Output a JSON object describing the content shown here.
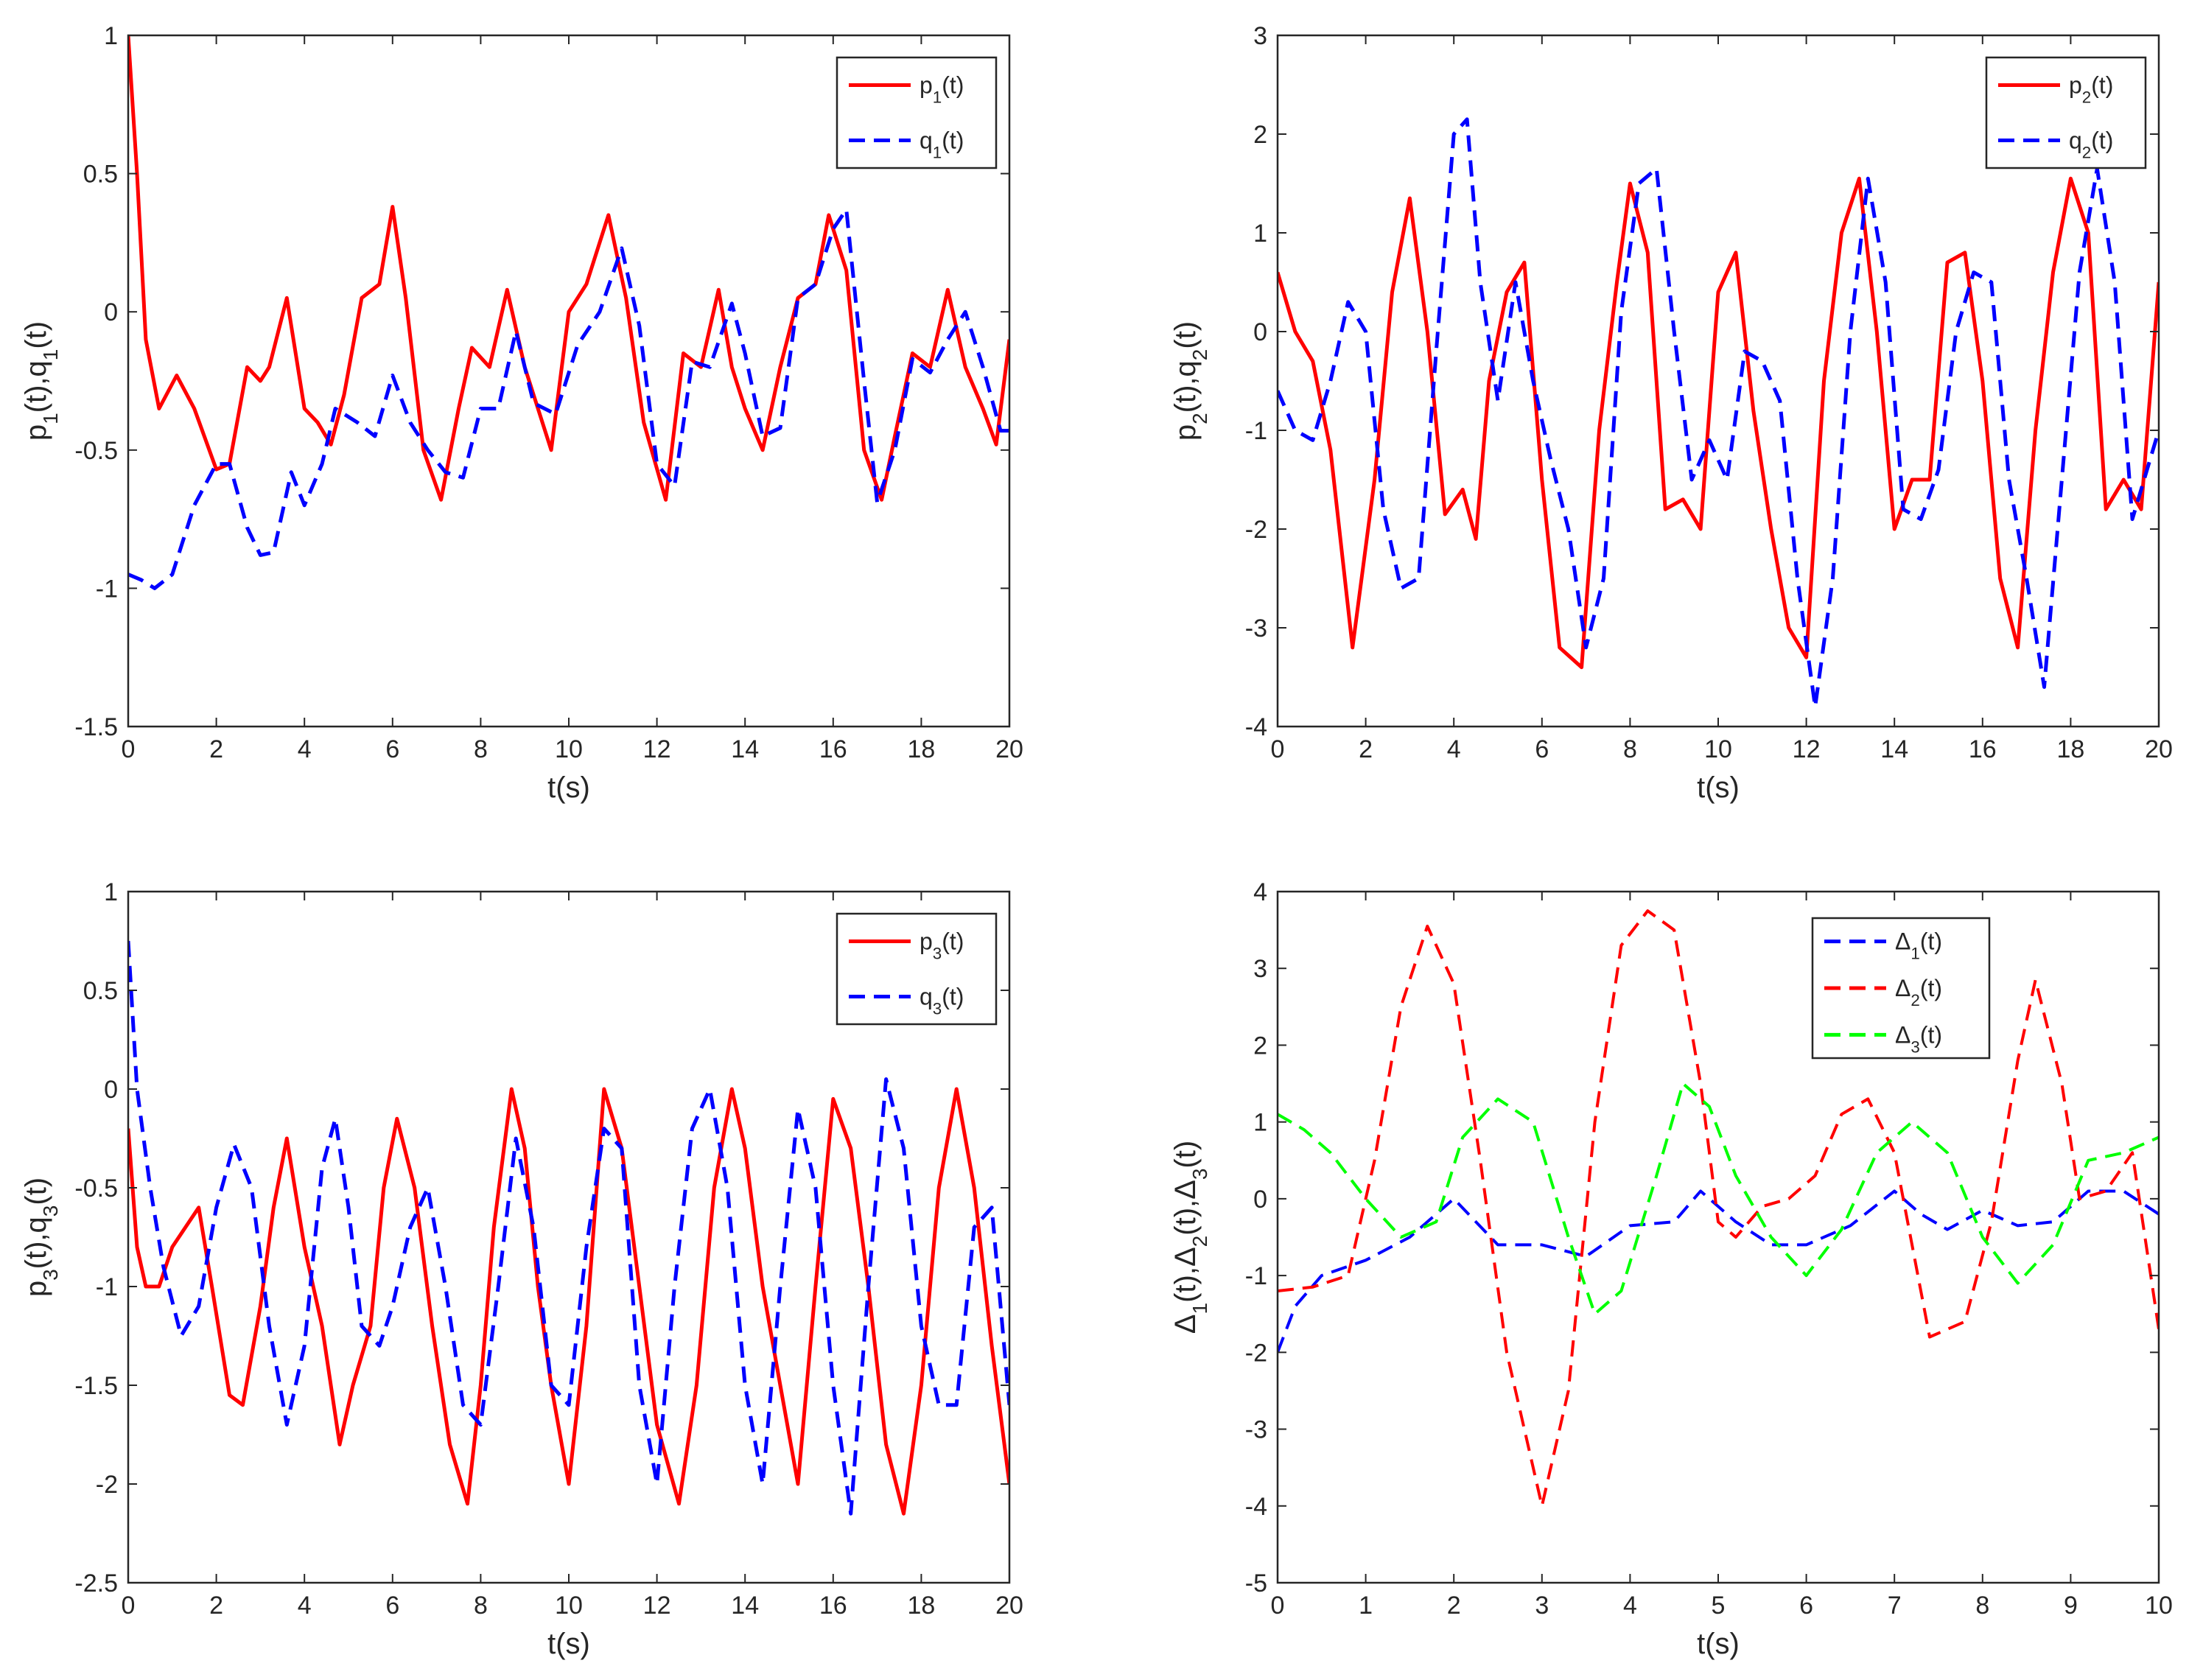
{
  "figure": {
    "name": "four-panel time response figure"
  },
  "chart_data": [
    {
      "type": "line",
      "xlabel": "t(s)",
      "ylabel_html": "p<tspan baseline-shift='sub' font-size='0.7em'>1</tspan>(t),q<tspan baseline-shift='sub' font-size='0.7em'>1</tspan>(t)",
      "xlim": [
        0,
        20
      ],
      "ylim": [
        -1.5,
        1
      ],
      "xticks": [
        0,
        2,
        4,
        6,
        8,
        10,
        12,
        14,
        16,
        18,
        20
      ],
      "yticks": [
        -1.5,
        -1,
        -0.5,
        0,
        0.5,
        1
      ],
      "ytick_labels": [
        "-1.5",
        "-1",
        "-0.5",
        "0",
        "0.5",
        "1"
      ],
      "legend_position": "top-right",
      "series": [
        {
          "name": "p1(t)",
          "legend_base": "p",
          "legend_sub": "1",
          "legend_suffix": "(t)",
          "color": "#ff0000",
          "dash": "solid",
          "x": [
            0,
            0.2,
            0.4,
            0.7,
            1.1,
            1.5,
            2.0,
            2.3,
            2.7,
            3.0,
            3.2,
            3.6,
            4.0,
            4.3,
            4.6,
            4.9,
            5.3,
            5.7,
            6.0,
            6.3,
            6.7,
            7.1,
            7.5,
            7.8,
            8.2,
            8.6,
            9.0,
            9.6,
            10.0,
            10.4,
            10.9,
            11.3,
            11.7,
            12.2,
            12.6,
            13.0,
            13.4,
            13.7,
            14.0,
            14.4,
            14.8,
            15.2,
            15.6,
            15.9,
            16.3,
            16.7,
            17.1,
            17.4,
            17.8,
            18.2,
            18.6,
            19.0,
            19.4,
            19.7,
            20.0
          ],
          "y": [
            1.0,
            0.5,
            -0.1,
            -0.35,
            -0.23,
            -0.35,
            -0.57,
            -0.55,
            -0.2,
            -0.25,
            -0.2,
            0.05,
            -0.35,
            -0.4,
            -0.48,
            -0.3,
            0.05,
            0.1,
            0.38,
            0.05,
            -0.5,
            -0.68,
            -0.35,
            -0.13,
            -0.2,
            0.08,
            -0.2,
            -0.5,
            0.0,
            0.1,
            0.35,
            0.05,
            -0.4,
            -0.68,
            -0.15,
            -0.2,
            0.08,
            -0.2,
            -0.35,
            -0.5,
            -0.2,
            0.05,
            0.1,
            0.35,
            0.15,
            -0.5,
            -0.68,
            -0.45,
            -0.15,
            -0.2,
            0.08,
            -0.2,
            -0.35,
            -0.48,
            -0.1
          ]
        },
        {
          "name": "q1(t)",
          "legend_base": "q",
          "legend_sub": "1",
          "legend_suffix": "(t)",
          "color": "#0000ff",
          "dash": "dashed",
          "x": [
            0,
            0.3,
            0.6,
            1.0,
            1.5,
            2.0,
            2.3,
            2.7,
            3.0,
            3.3,
            3.7,
            4.0,
            4.4,
            4.7,
            5.2,
            5.6,
            6.0,
            6.4,
            6.8,
            7.2,
            7.6,
            8.0,
            8.4,
            8.8,
            9.2,
            9.7,
            10.2,
            10.7,
            11.2,
            11.6,
            12.0,
            12.4,
            12.8,
            13.2,
            13.7,
            14.0,
            14.4,
            14.8,
            15.2,
            15.6,
            16.0,
            16.3,
            16.7,
            17.0,
            17.4,
            17.8,
            18.2,
            18.6,
            19.0,
            19.4,
            19.8,
            20.0
          ],
          "y": [
            -0.95,
            -0.97,
            -1.0,
            -0.95,
            -0.7,
            -0.55,
            -0.55,
            -0.78,
            -0.88,
            -0.87,
            -0.58,
            -0.7,
            -0.55,
            -0.35,
            -0.4,
            -0.45,
            -0.23,
            -0.4,
            -0.5,
            -0.58,
            -0.6,
            -0.35,
            -0.35,
            -0.07,
            -0.33,
            -0.37,
            -0.12,
            0.0,
            0.23,
            -0.05,
            -0.55,
            -0.63,
            -0.18,
            -0.2,
            0.03,
            -0.15,
            -0.45,
            -0.42,
            0.05,
            0.1,
            0.3,
            0.37,
            -0.25,
            -0.69,
            -0.5,
            -0.17,
            -0.22,
            -0.1,
            0.0,
            -0.2,
            -0.43,
            -0.43
          ]
        }
      ]
    },
    {
      "type": "line",
      "xlabel": "t(s)",
      "ylabel_html": "p<tspan baseline-shift='sub' font-size='0.7em'>2</tspan>(t),q<tspan baseline-shift='sub' font-size='0.7em'>2</tspan>(t)",
      "xlim": [
        0,
        20
      ],
      "ylim": [
        -4,
        3
      ],
      "xticks": [
        0,
        2,
        4,
        6,
        8,
        10,
        12,
        14,
        16,
        18,
        20
      ],
      "yticks": [
        -4,
        -3,
        -2,
        -1,
        0,
        1,
        2,
        3
      ],
      "ytick_labels": [
        "-4",
        "-3",
        "-2",
        "-1",
        "0",
        "1",
        "2",
        "3"
      ],
      "legend_position": "top-right",
      "series": [
        {
          "name": "p2(t)",
          "legend_base": "p",
          "legend_sub": "2",
          "legend_suffix": "(t)",
          "color": "#ff0000",
          "dash": "solid",
          "x": [
            0,
            0.4,
            0.8,
            1.2,
            1.7,
            2.2,
            2.6,
            3.0,
            3.4,
            3.8,
            4.2,
            4.5,
            4.8,
            5.2,
            5.6,
            6.0,
            6.4,
            6.9,
            7.3,
            7.7,
            8.0,
            8.4,
            8.8,
            9.2,
            9.6,
            10.0,
            10.4,
            10.8,
            11.2,
            11.6,
            12.0,
            12.4,
            12.8,
            13.2,
            13.6,
            14.0,
            14.4,
            14.8,
            15.2,
            15.6,
            16.0,
            16.4,
            16.8,
            17.2,
            17.6,
            18.0,
            18.4,
            18.8,
            19.2,
            19.6,
            20.0
          ],
          "y": [
            0.6,
            0.0,
            -0.3,
            -1.2,
            -3.2,
            -1.5,
            0.4,
            1.35,
            0.0,
            -1.85,
            -1.6,
            -2.1,
            -0.5,
            0.4,
            0.7,
            -1.5,
            -3.2,
            -3.4,
            -1.0,
            0.5,
            1.5,
            0.8,
            -1.8,
            -1.7,
            -2.0,
            0.4,
            0.8,
            -0.8,
            -2.0,
            -3.0,
            -3.3,
            -0.5,
            1.0,
            1.55,
            0.0,
            -2.0,
            -1.5,
            -1.5,
            0.7,
            0.8,
            -0.5,
            -2.5,
            -3.2,
            -1.0,
            0.6,
            1.55,
            1.0,
            -1.8,
            -1.5,
            -1.8,
            0.5
          ]
        },
        {
          "name": "q2(t)",
          "legend_base": "q",
          "legend_sub": "2",
          "legend_suffix": "(t)",
          "color": "#0000ff",
          "dash": "dashed",
          "x": [
            0,
            0.4,
            0.8,
            1.2,
            1.6,
            2.0,
            2.4,
            2.8,
            3.2,
            3.6,
            4.0,
            4.3,
            4.6,
            5.0,
            5.4,
            5.8,
            6.2,
            6.6,
            7.0,
            7.4,
            7.8,
            8.2,
            8.6,
            9.0,
            9.4,
            9.8,
            10.2,
            10.6,
            11.0,
            11.4,
            11.8,
            12.2,
            12.6,
            13.0,
            13.4,
            13.8,
            14.2,
            14.6,
            15.0,
            15.4,
            15.8,
            16.2,
            16.6,
            17.0,
            17.4,
            17.8,
            18.2,
            18.6,
            19.0,
            19.4,
            19.8,
            20.0
          ],
          "y": [
            -0.6,
            -1.0,
            -1.1,
            -0.5,
            0.3,
            0.0,
            -1.8,
            -2.6,
            -2.5,
            -0.2,
            2.0,
            2.15,
            0.5,
            -0.7,
            0.5,
            -0.5,
            -1.3,
            -2.0,
            -3.2,
            -2.5,
            0.2,
            1.5,
            1.65,
            0.0,
            -1.5,
            -1.1,
            -1.5,
            -0.2,
            -0.3,
            -0.7,
            -2.5,
            -3.8,
            -2.5,
            0.0,
            1.55,
            0.5,
            -1.8,
            -1.9,
            -1.4,
            0.0,
            0.6,
            0.5,
            -1.5,
            -2.5,
            -3.6,
            -1.5,
            0.6,
            1.65,
            0.5,
            -1.9,
            -1.3,
            -1.0
          ]
        }
      ]
    },
    {
      "type": "line",
      "xlabel": "t(s)",
      "ylabel_html": "p<tspan baseline-shift='sub' font-size='0.7em'>3</tspan>(t),q<tspan baseline-shift='sub' font-size='0.7em'>3</tspan>(t)",
      "xlim": [
        0,
        20
      ],
      "ylim": [
        -2.5,
        1
      ],
      "xticks": [
        0,
        2,
        4,
        6,
        8,
        10,
        12,
        14,
        16,
        18,
        20
      ],
      "yticks": [
        -2.5,
        -2,
        -1.5,
        -1,
        -0.5,
        0,
        0.5,
        1
      ],
      "ytick_labels": [
        "-2.5",
        "-2",
        "-1.5",
        "-1",
        "-0.5",
        "0",
        "0.5",
        "1"
      ],
      "legend_position": "top-right",
      "series": [
        {
          "name": "p3(t)",
          "legend_base": "p",
          "legend_sub": "3",
          "legend_suffix": "(t)",
          "color": "#ff0000",
          "dash": "solid",
          "x": [
            0,
            0.2,
            0.4,
            0.7,
            1.0,
            1.3,
            1.6,
            1.9,
            2.3,
            2.6,
            3.0,
            3.3,
            3.6,
            4.0,
            4.4,
            4.8,
            5.1,
            5.5,
            5.8,
            6.1,
            6.5,
            6.9,
            7.3,
            7.7,
            8.0,
            8.3,
            8.7,
            9.0,
            9.3,
            9.6,
            10.0,
            10.4,
            10.8,
            11.2,
            11.6,
            12.0,
            12.5,
            12.9,
            13.3,
            13.7,
            14.0,
            14.4,
            14.8,
            15.2,
            15.6,
            16.0,
            16.4,
            16.8,
            17.2,
            17.6,
            18.0,
            18.4,
            18.8,
            19.2,
            19.6,
            20.0
          ],
          "y": [
            -0.2,
            -0.8,
            -1.0,
            -1.0,
            -0.8,
            -0.7,
            -0.6,
            -1.0,
            -1.55,
            -1.6,
            -1.1,
            -0.6,
            -0.25,
            -0.8,
            -1.2,
            -1.8,
            -1.5,
            -1.2,
            -0.5,
            -0.15,
            -0.5,
            -1.2,
            -1.8,
            -2.1,
            -1.5,
            -0.7,
            0.0,
            -0.3,
            -1.0,
            -1.5,
            -2.0,
            -1.2,
            0.0,
            -0.3,
            -1.0,
            -1.7,
            -2.1,
            -1.5,
            -0.5,
            0.0,
            -0.3,
            -1.0,
            -1.5,
            -2.0,
            -1.0,
            -0.05,
            -0.3,
            -1.0,
            -1.8,
            -2.15,
            -1.5,
            -0.5,
            0.0,
            -0.5,
            -1.3,
            -2.0
          ]
        },
        {
          "name": "q3(t)",
          "legend_base": "q",
          "legend_sub": "3",
          "legend_suffix": "(t)",
          "color": "#0000ff",
          "dash": "dashed",
          "x": [
            0,
            0.2,
            0.5,
            0.8,
            1.2,
            1.6,
            2.0,
            2.4,
            2.8,
            3.2,
            3.6,
            4.0,
            4.4,
            4.7,
            5.0,
            5.3,
            5.7,
            6.0,
            6.4,
            6.8,
            7.2,
            7.6,
            8.0,
            8.4,
            8.8,
            9.2,
            9.6,
            10.0,
            10.4,
            10.8,
            11.2,
            11.6,
            12.0,
            12.4,
            12.8,
            13.2,
            13.6,
            14.0,
            14.4,
            14.8,
            15.2,
            15.6,
            16.0,
            16.4,
            16.8,
            17.2,
            17.6,
            18.0,
            18.4,
            18.8,
            19.2,
            19.6,
            20.0
          ],
          "y": [
            0.75,
            0.0,
            -0.5,
            -0.9,
            -1.25,
            -1.1,
            -0.6,
            -0.28,
            -0.5,
            -1.2,
            -1.7,
            -1.3,
            -0.4,
            -0.15,
            -0.6,
            -1.2,
            -1.3,
            -1.1,
            -0.7,
            -0.5,
            -1.0,
            -1.6,
            -1.7,
            -1.0,
            -0.25,
            -0.7,
            -1.5,
            -1.6,
            -0.8,
            -0.2,
            -0.3,
            -1.5,
            -2.0,
            -1.0,
            -0.2,
            0.0,
            -0.5,
            -1.5,
            -2.0,
            -1.0,
            -0.1,
            -0.5,
            -1.5,
            -2.15,
            -1.0,
            0.05,
            -0.3,
            -1.2,
            -1.6,
            -1.6,
            -0.7,
            -0.6,
            -1.6
          ]
        }
      ]
    },
    {
      "type": "line",
      "xlabel": "t(s)",
      "ylabel_html": "&#916;<tspan baseline-shift='sub' font-size='0.7em'>1</tspan>(t),&#916;<tspan baseline-shift='sub' font-size='0.7em'>2</tspan>(t),&#916;<tspan baseline-shift='sub' font-size='0.7em'>3</tspan>(t)",
      "xlim": [
        0,
        10
      ],
      "ylim": [
        -5,
        4
      ],
      "xticks": [
        0,
        1,
        2,
        3,
        4,
        5,
        6,
        7,
        8,
        9,
        10
      ],
      "yticks": [
        -5,
        -4,
        -3,
        -2,
        -1,
        0,
        1,
        2,
        3,
        4
      ],
      "ytick_labels": [
        "-5",
        "-4",
        "-3",
        "-2",
        "-1",
        "0",
        "1",
        "2",
        "3",
        "4"
      ],
      "legend_position": "top-right-inset",
      "series": [
        {
          "name": "Δ1(t)",
          "legend_base": "Δ",
          "legend_sub": "1",
          "legend_suffix": "(t)",
          "color": "#0000ff",
          "dash": "dashed",
          "x": [
            0,
            0.2,
            0.5,
            1.0,
            1.5,
            2.0,
            2.5,
            3.0,
            3.5,
            4.0,
            4.5,
            4.8,
            5.2,
            5.6,
            6.0,
            6.5,
            7.0,
            7.3,
            7.6,
            8.0,
            8.4,
            8.8,
            9.2,
            9.6,
            10.0
          ],
          "y": [
            -2.0,
            -1.4,
            -1.0,
            -0.8,
            -0.5,
            0.0,
            -0.6,
            -0.6,
            -0.75,
            -0.35,
            -0.3,
            0.1,
            -0.3,
            -0.6,
            -0.6,
            -0.35,
            0.1,
            -0.2,
            -0.4,
            -0.15,
            -0.35,
            -0.3,
            0.1,
            0.1,
            -0.2
          ]
        },
        {
          "name": "Δ2(t)",
          "legend_base": "Δ",
          "legend_sub": "2",
          "legend_suffix": "(t)",
          "color": "#ff0000",
          "dash": "dashed",
          "x": [
            0,
            0.4,
            0.8,
            1.1,
            1.4,
            1.7,
            2.0,
            2.3,
            2.6,
            3.0,
            3.3,
            3.6,
            3.9,
            4.2,
            4.5,
            4.8,
            5.0,
            5.2,
            5.5,
            5.8,
            6.1,
            6.4,
            6.7,
            7.0,
            7.4,
            7.8,
            8.1,
            8.4,
            8.6,
            8.9,
            9.1,
            9.4,
            9.7,
            10.0
          ],
          "y": [
            -1.2,
            -1.15,
            -1.0,
            0.5,
            2.5,
            3.55,
            2.8,
            0.5,
            -2.0,
            -4.0,
            -2.5,
            1.0,
            3.3,
            3.75,
            3.5,
            1.5,
            -0.3,
            -0.5,
            -0.1,
            0.0,
            0.3,
            1.1,
            1.3,
            0.6,
            -1.8,
            -1.6,
            -0.3,
            1.8,
            2.85,
            1.5,
            0.0,
            0.1,
            0.6,
            -1.7
          ]
        },
        {
          "name": "Δ3(t)",
          "legend_base": "Δ",
          "legend_sub": "3",
          "legend_suffix": "(t)",
          "color": "#00ff00",
          "dash": "dashed",
          "x": [
            0,
            0.3,
            0.6,
            1.0,
            1.4,
            1.8,
            2.1,
            2.5,
            2.9,
            3.3,
            3.6,
            3.9,
            4.3,
            4.6,
            4.9,
            5.2,
            5.6,
            6.0,
            6.4,
            6.8,
            7.2,
            7.6,
            8.0,
            8.4,
            8.8,
            9.2,
            9.6,
            10.0
          ],
          "y": [
            1.1,
            0.9,
            0.6,
            0.0,
            -0.5,
            -0.3,
            0.8,
            1.3,
            1.0,
            -0.5,
            -1.5,
            -1.2,
            0.3,
            1.5,
            1.2,
            0.3,
            -0.5,
            -1.0,
            -0.4,
            0.6,
            1.0,
            0.6,
            -0.5,
            -1.1,
            -0.6,
            0.5,
            0.6,
            0.8
          ]
        }
      ]
    }
  ]
}
